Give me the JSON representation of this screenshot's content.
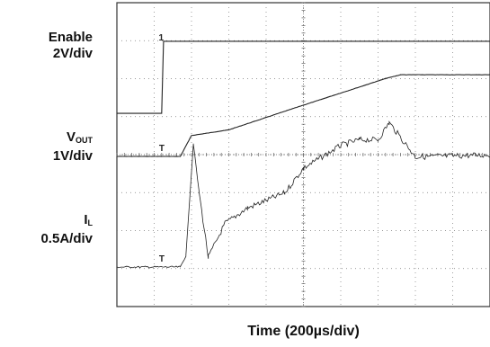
{
  "chart_data": {
    "type": "line",
    "xlabel": "Time (200µs/div)",
    "x_divisions": 10,
    "y_divisions": 8,
    "grid": "dotted",
    "channels": [
      {
        "name": "Enable",
        "scale": "2V/div",
        "marker": "1",
        "values_div": {
          "t": [
            0,
            1.2,
            1.25,
            10
          ],
          "y": [
            -0.95,
            -0.95,
            0.95,
            0.95
          ]
        }
      },
      {
        "name": "VOUT",
        "name_main": "V",
        "name_sub": "OUT",
        "scale": "1V/div",
        "marker": "T",
        "values_div": {
          "t": [
            0,
            1.7,
            2.0,
            3.0,
            5.0,
            7.2,
            7.6,
            10
          ],
          "y": [
            0,
            0,
            0.55,
            0.7,
            1.35,
            2.05,
            2.15,
            2.15
          ]
        }
      },
      {
        "name": "IL",
        "name_main": "I",
        "name_sub": "L",
        "scale": "0.5A/div",
        "marker": "T",
        "values_div": {
          "t": [
            0,
            1.7,
            1.85,
            2.05,
            2.2,
            2.45,
            2.9,
            3.5,
            4.5,
            5.0,
            6.0,
            6.5,
            7.0,
            7.3,
            8.0,
            10
          ],
          "y": [
            0,
            0,
            0.3,
            3.25,
            2.0,
            0.25,
            1.15,
            1.55,
            1.95,
            2.6,
            3.2,
            3.35,
            3.35,
            3.8,
            2.9,
            2.95
          ]
        }
      }
    ]
  }
}
